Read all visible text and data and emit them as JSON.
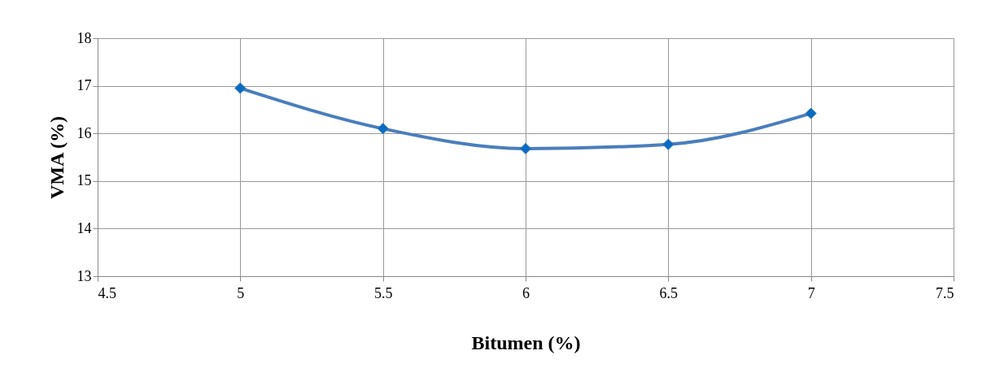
{
  "chart_data": {
    "type": "line",
    "xlabel": "Bitumen (%)",
    "ylabel": "VMA (%)",
    "x": [
      5,
      5.5,
      6,
      6.5,
      7
    ],
    "series": [
      {
        "color": "#4a7ebb",
        "values": [
          16.95,
          16.1,
          15.68,
          15.77,
          16.42
        ]
      }
    ],
    "xlim": [
      4.5,
      7.5
    ],
    "xticks": [
      4.5,
      5,
      5.5,
      6,
      6.5,
      7,
      7.5
    ],
    "ylim": [
      13,
      18
    ],
    "yticks": [
      13,
      14,
      15,
      16,
      17,
      18
    ],
    "grid": true,
    "marker": "diamond",
    "line_style": "solid",
    "legend": false
  }
}
